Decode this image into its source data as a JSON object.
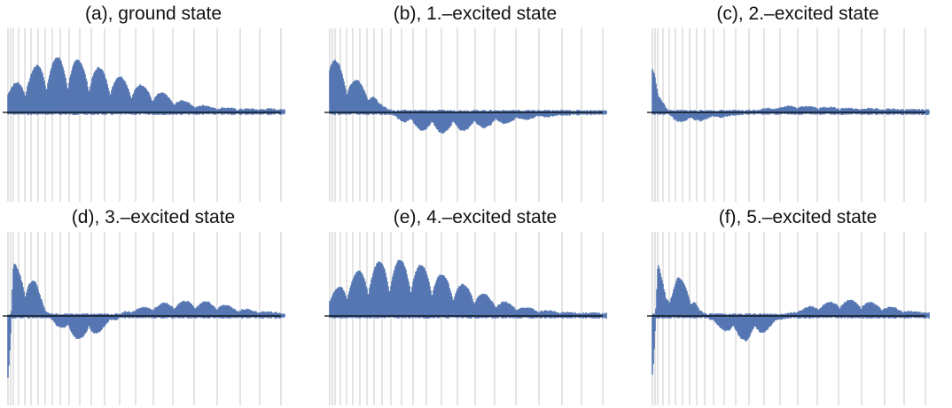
{
  "colors": {
    "signal": "#5577b2",
    "axis": "#000000",
    "grid": "#c8c8c8",
    "background": "#ffffff"
  },
  "chart_data": [
    {
      "type": "area",
      "title": "(a), ground state",
      "grid": "vertical lines only",
      "xlabel": "",
      "ylabel": "",
      "ylim": [
        -1,
        1
      ],
      "envelope": [
        {
          "x": 0.0,
          "y": 0.25
        },
        {
          "x": 0.07,
          "y": 0.45
        },
        {
          "x": 0.12,
          "y": 0.58
        },
        {
          "x": 0.18,
          "y": 0.64
        },
        {
          "x": 0.23,
          "y": 0.63
        },
        {
          "x": 0.28,
          "y": 0.57
        },
        {
          "x": 0.34,
          "y": 0.5
        },
        {
          "x": 0.41,
          "y": 0.4
        },
        {
          "x": 0.48,
          "y": 0.31
        },
        {
          "x": 0.55,
          "y": 0.22
        },
        {
          "x": 0.62,
          "y": 0.13
        },
        {
          "x": 0.69,
          "y": 0.07
        },
        {
          "x": 0.76,
          "y": 0.04
        },
        {
          "x": 0.85,
          "y": 0.02
        },
        {
          "x": 1.0,
          "y": 0.02
        }
      ]
    },
    {
      "type": "area",
      "title": "(b), 1.–excited state",
      "grid": "vertical lines only",
      "xlabel": "",
      "ylabel": "",
      "ylim": [
        -1,
        1
      ],
      "envelope": [
        {
          "x": 0.0,
          "y": 0.65
        },
        {
          "x": 0.04,
          "y": 0.55
        },
        {
          "x": 0.08,
          "y": 0.4
        },
        {
          "x": 0.14,
          "y": 0.28
        },
        {
          "x": 0.18,
          "y": 0.08
        },
        {
          "x": 0.22,
          "y": 0.01
        },
        {
          "x": 0.26,
          "y": -0.08
        },
        {
          "x": 0.33,
          "y": -0.19
        },
        {
          "x": 0.4,
          "y": -0.22
        },
        {
          "x": 0.48,
          "y": -0.2
        },
        {
          "x": 0.56,
          "y": -0.16
        },
        {
          "x": 0.65,
          "y": -0.1
        },
        {
          "x": 0.75,
          "y": -0.04
        },
        {
          "x": 0.85,
          "y": -0.01
        },
        {
          "x": 1.0,
          "y": 0.0
        }
      ]
    },
    {
      "type": "area",
      "title": "(c), 2.–excited state",
      "grid": "vertical lines only",
      "xlabel": "",
      "ylabel": "",
      "ylim": [
        -1,
        1
      ],
      "envelope": [
        {
          "x": 0.0,
          "y": 0.65
        },
        {
          "x": 0.02,
          "y": 0.18
        },
        {
          "x": 0.05,
          "y": 0.05
        },
        {
          "x": 0.08,
          "y": -0.08
        },
        {
          "x": 0.15,
          "y": -0.09
        },
        {
          "x": 0.22,
          "y": -0.05
        },
        {
          "x": 0.3,
          "y": -0.01
        },
        {
          "x": 0.4,
          "y": 0.02
        },
        {
          "x": 0.5,
          "y": 0.06
        },
        {
          "x": 0.6,
          "y": 0.05
        },
        {
          "x": 0.7,
          "y": 0.03
        },
        {
          "x": 0.85,
          "y": 0.02
        },
        {
          "x": 1.0,
          "y": 0.01
        }
      ]
    },
    {
      "type": "area",
      "title": "(d), 3.–excited state",
      "grid": "vertical lines only",
      "xlabel": "",
      "ylabel": "",
      "ylim": [
        -1,
        1
      ],
      "envelope": [
        {
          "x": 0.0,
          "y": -0.95
        },
        {
          "x": 0.02,
          "y": 0.6
        },
        {
          "x": 0.06,
          "y": 0.52
        },
        {
          "x": 0.1,
          "y": 0.38
        },
        {
          "x": 0.14,
          "y": 0.05
        },
        {
          "x": 0.18,
          "y": -0.1
        },
        {
          "x": 0.24,
          "y": -0.25
        },
        {
          "x": 0.3,
          "y": -0.25
        },
        {
          "x": 0.36,
          "y": -0.08
        },
        {
          "x": 0.42,
          "y": 0.03
        },
        {
          "x": 0.5,
          "y": 0.09
        },
        {
          "x": 0.58,
          "y": 0.14
        },
        {
          "x": 0.66,
          "y": 0.16
        },
        {
          "x": 0.74,
          "y": 0.14
        },
        {
          "x": 0.82,
          "y": 0.08
        },
        {
          "x": 0.9,
          "y": 0.04
        },
        {
          "x": 1.0,
          "y": 0.01
        }
      ]
    },
    {
      "type": "area",
      "title": "(e), 4.–excited state",
      "grid": "vertical lines only",
      "xlabel": "",
      "ylabel": "",
      "ylim": [
        -1,
        1
      ],
      "envelope": [
        {
          "x": 0.0,
          "y": 0.2
        },
        {
          "x": 0.05,
          "y": 0.4
        },
        {
          "x": 0.12,
          "y": 0.55
        },
        {
          "x": 0.2,
          "y": 0.65
        },
        {
          "x": 0.28,
          "y": 0.64
        },
        {
          "x": 0.36,
          "y": 0.55
        },
        {
          "x": 0.44,
          "y": 0.42
        },
        {
          "x": 0.52,
          "y": 0.3
        },
        {
          "x": 0.6,
          "y": 0.18
        },
        {
          "x": 0.68,
          "y": 0.1
        },
        {
          "x": 0.76,
          "y": 0.05
        },
        {
          "x": 0.86,
          "y": 0.02
        },
        {
          "x": 1.0,
          "y": 0.01
        }
      ]
    },
    {
      "type": "area",
      "title": "(f), 5.–excited state",
      "grid": "vertical lines only",
      "xlabel": "",
      "ylabel": "",
      "ylim": [
        -1,
        1
      ],
      "envelope": [
        {
          "x": 0.0,
          "y": -0.9
        },
        {
          "x": 0.02,
          "y": 0.6
        },
        {
          "x": 0.05,
          "y": 0.25
        },
        {
          "x": 0.09,
          "y": 0.45
        },
        {
          "x": 0.13,
          "y": 0.35
        },
        {
          "x": 0.17,
          "y": 0.05
        },
        {
          "x": 0.22,
          "y": -0.05
        },
        {
          "x": 0.28,
          "y": -0.2
        },
        {
          "x": 0.34,
          "y": -0.28
        },
        {
          "x": 0.4,
          "y": -0.18
        },
        {
          "x": 0.46,
          "y": -0.03
        },
        {
          "x": 0.52,
          "y": 0.04
        },
        {
          "x": 0.6,
          "y": 0.12
        },
        {
          "x": 0.68,
          "y": 0.17
        },
        {
          "x": 0.76,
          "y": 0.16
        },
        {
          "x": 0.84,
          "y": 0.1
        },
        {
          "x": 0.92,
          "y": 0.04
        },
        {
          "x": 1.0,
          "y": 0.02
        }
      ]
    }
  ]
}
